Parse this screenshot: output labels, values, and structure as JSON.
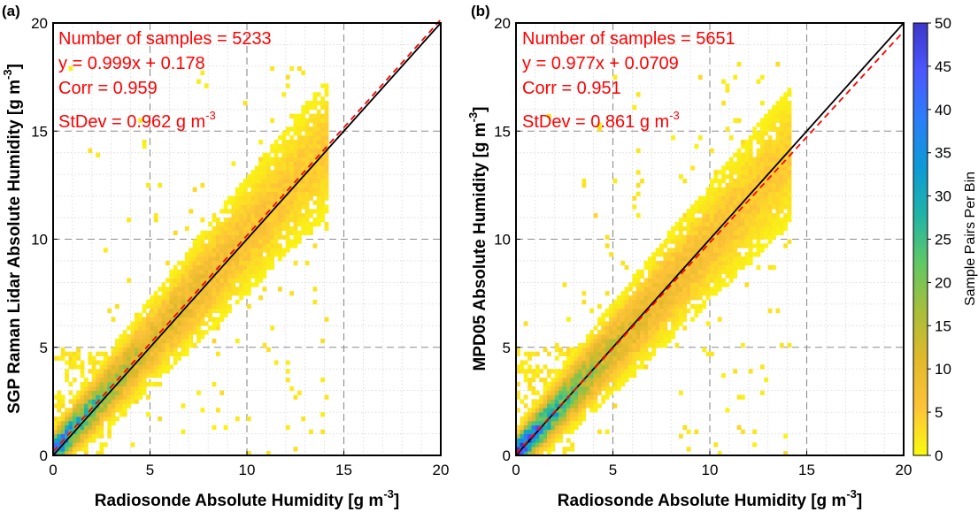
{
  "figure": {
    "colorbar": {
      "label": "Sample Pairs Per Bin",
      "ticks": [
        0,
        5,
        10,
        15,
        20,
        25,
        30,
        35,
        40,
        45,
        50
      ],
      "range": [
        0,
        50
      ],
      "colormap": [
        "#f9fb0e",
        "#fec338",
        "#e1b92b",
        "#a8be3a",
        "#60c865",
        "#20b4a6",
        "#0c9ad6",
        "#2b7ef8",
        "#4b57ff",
        "#3c37c8"
      ]
    }
  },
  "chart_data": [
    {
      "type": "heatmap",
      "panel_label": "(a)",
      "xlabel": {
        "main": "Radiosonde Absolute Humidity [g m",
        "sup": "-3",
        "end": "]"
      },
      "ylabel": {
        "main": "SGP Raman Lidar Absolute Humidity [g m",
        "sup": "-3",
        "end": "]"
      },
      "xlim": [
        0,
        20
      ],
      "ylim": [
        0,
        20
      ],
      "xticks": [
        0,
        5,
        10,
        15,
        20
      ],
      "yticks": [
        0,
        5,
        10,
        15,
        20
      ],
      "grid": true,
      "annotations": [
        {
          "text": "Number of samples = 5233"
        },
        {
          "text": "y = 0.999x + 0.178"
        },
        {
          "text": "Corr = 0.959"
        },
        {
          "text": "StDev = 0.962 g m",
          "sup": "-3"
        }
      ],
      "one_to_one_line": {
        "slope": 1,
        "intercept": 0,
        "color": "#000000"
      },
      "fit_line": {
        "slope": 0.999,
        "intercept": 0.178,
        "color": "#ff0000",
        "style": "dashed"
      },
      "samples": 5233,
      "corr": 0.959,
      "stdev": 0.962
    },
    {
      "type": "heatmap",
      "panel_label": "(b)",
      "xlabel": {
        "main": "Radiosonde Absolute Humidity [g m",
        "sup": "-3",
        "end": "]"
      },
      "ylabel": {
        "main": "MPD05 Absolute Humidity [g m",
        "sup": "-3",
        "end": "]"
      },
      "xlim": [
        0,
        20
      ],
      "ylim": [
        0,
        20
      ],
      "xticks": [
        0,
        5,
        10,
        15,
        20
      ],
      "yticks": [
        0,
        5,
        10,
        15,
        20
      ],
      "grid": true,
      "annotations": [
        {
          "text": "Number of samples = 5651"
        },
        {
          "text": "y = 0.977x + 0.0709"
        },
        {
          "text": "Corr = 0.951"
        },
        {
          "text": "StDev = 0.861 g m",
          "sup": "-3"
        }
      ],
      "one_to_one_line": {
        "slope": 1,
        "intercept": 0,
        "color": "#000000"
      },
      "fit_line": {
        "slope": 0.977,
        "intercept": 0.0709,
        "color": "#ff0000",
        "style": "dashed"
      },
      "samples": 5651,
      "corr": 0.951,
      "stdev": 0.861
    }
  ]
}
